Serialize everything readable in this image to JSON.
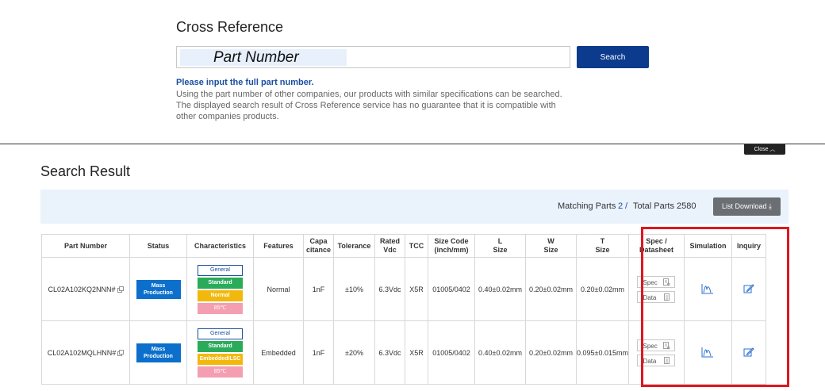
{
  "search": {
    "title": "Cross Reference",
    "placeholder": "Part Number",
    "button_label": "Search",
    "hint_strong": "Please input the full part number.",
    "hint_lines": [
      "Using the part number of other companies, our products with similar specifications can be searched.",
      "The displayed search result of Cross Reference service has no guarantee that it is compatible with",
      "other companies products."
    ]
  },
  "close_label": "Close ︿",
  "result": {
    "title": "Search Result",
    "matching_label": "Matching Parts",
    "matching_count": "2",
    "sep": "/",
    "total_label": "Total Parts",
    "total_count": "2580",
    "download_label": "List Download ⤓"
  },
  "table": {
    "headers": [
      "Part Number",
      "Status",
      "Characteristics",
      "Features",
      "Capa\ncitance",
      "Tolerance",
      "Rated\nVdc",
      "TCC",
      "Size Code\n(inch/mm)",
      "L\nSize",
      "W\nSize",
      "T\nSize",
      "Spec /\nDatasheet",
      "Simulation",
      "Inquiry"
    ],
    "rows": [
      {
        "part_number": "CL02A102KQ2NNN#",
        "status": "Mass\nProduction",
        "chars": [
          "General",
          "Standard",
          "Normal",
          "85℃"
        ],
        "features": "Normal",
        "capacitance": "1nF",
        "tolerance": "±10%",
        "rated_vdc": "6.3Vdc",
        "tcc": "X5R",
        "size_code": "01005/0402",
        "l_size": "0.40±0.02mm",
        "w_size": "0.20±0.02mm",
        "t_size": "0.20±0.02mm",
        "spec_label": "Spec",
        "data_label": "Data"
      },
      {
        "part_number": "CL02A102MQLHNN#",
        "status": "Mass\nProduction",
        "chars": [
          "General",
          "Standard",
          "Embedded/LSC",
          "85℃"
        ],
        "features": "Embedded",
        "capacitance": "1nF",
        "tolerance": "±20%",
        "rated_vdc": "6.3Vdc",
        "tcc": "X5R",
        "size_code": "01005/0402",
        "l_size": "0.40±0.02mm",
        "w_size": "0.20±0.02mm",
        "t_size": "0.095±0.015mm",
        "spec_label": "Spec",
        "data_label": "Data"
      }
    ]
  },
  "colors": {
    "primary": "#0c3a8c",
    "status_blue": "#0b6fcb",
    "standard_green": "#2aab5a",
    "normal_yellow": "#f2b80c",
    "temp_pink": "#f49fb1",
    "highlight_red": "#e0161e"
  },
  "icons": {
    "external-link": "external-link-icon",
    "simulation": "chart-icon",
    "inquiry": "edit-icon",
    "document": "document-icon"
  }
}
